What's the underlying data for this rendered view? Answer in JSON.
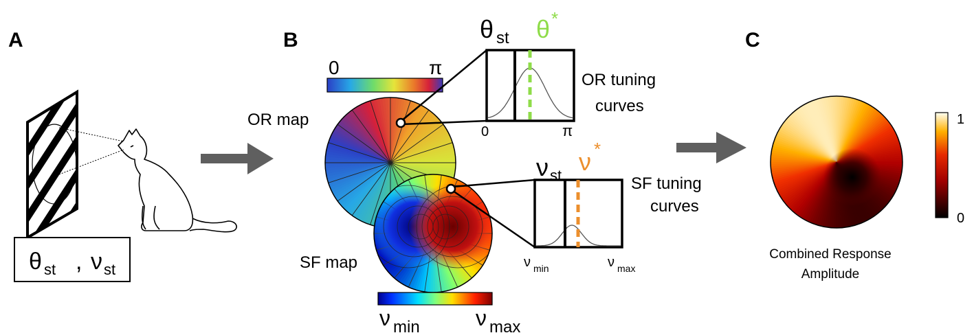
{
  "panels": {
    "a": "A",
    "b": "B",
    "c": "C"
  },
  "stimulus": {
    "theta": "θ",
    "theta_sub": "st",
    "comma": ",",
    "nu": "ν",
    "nu_sub": "st"
  },
  "or_map": {
    "label": "OR map",
    "colorbar_min": "0",
    "colorbar_max": "π"
  },
  "or_tuning": {
    "stim_label": "θ",
    "stim_sub": "st",
    "pref_label": "θ",
    "pref_sup": "*",
    "axis_min": "0",
    "axis_max": "π",
    "title_line1": "OR tuning",
    "title_line2": "curves",
    "pref_color": "#8fdc4a"
  },
  "sf_map": {
    "label": "SF map",
    "colorbar_min": "ν",
    "colorbar_min_sub": "min",
    "colorbar_max": "ν",
    "colorbar_max_sub": "max"
  },
  "sf_tuning": {
    "stim_label": "ν",
    "stim_sub": "st",
    "pref_label": "ν",
    "pref_sup": "*",
    "axis_min": "ν",
    "axis_min_sub": "min",
    "axis_max": "ν",
    "axis_max_sub": "max",
    "title_line1": "SF tuning",
    "title_line2": "curves",
    "pref_color": "#ec8f2d"
  },
  "combined": {
    "caption_line1": "Combined Response",
    "caption_line2": "Amplitude",
    "colorbar_min": "0",
    "colorbar_max": "1"
  },
  "colors": {
    "arrow": "#5f5f5f"
  }
}
